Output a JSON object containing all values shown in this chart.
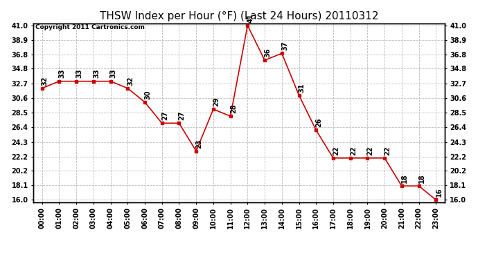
{
  "title": "THSW Index per Hour (°F) (Last 24 Hours) 20110312",
  "copyright": "Copyright 2011 Cartronics.com",
  "hours": [
    "00:00",
    "01:00",
    "02:00",
    "03:00",
    "04:00",
    "05:00",
    "06:00",
    "07:00",
    "08:00",
    "09:00",
    "10:00",
    "11:00",
    "12:00",
    "13:00",
    "14:00",
    "15:00",
    "16:00",
    "17:00",
    "18:00",
    "19:00",
    "20:00",
    "21:00",
    "22:00",
    "23:00"
  ],
  "values": [
    32,
    33,
    33,
    33,
    33,
    32,
    30,
    27,
    27,
    23,
    29,
    28,
    41,
    36,
    37,
    31,
    26,
    22,
    22,
    22,
    22,
    18,
    18,
    16
  ],
  "line_color": "#cc0000",
  "marker_color": "#cc0000",
  "bg_color": "#ffffff",
  "grid_color": "#bbbbbb",
  "ylim_min": 16.0,
  "ylim_max": 41.0,
  "yticks": [
    16.0,
    18.1,
    20.2,
    22.2,
    24.3,
    26.4,
    28.5,
    30.6,
    32.7,
    34.8,
    36.8,
    38.9,
    41.0
  ],
  "title_fontsize": 11,
  "label_fontsize": 7,
  "tick_fontsize": 7,
  "copyright_fontsize": 6.5
}
